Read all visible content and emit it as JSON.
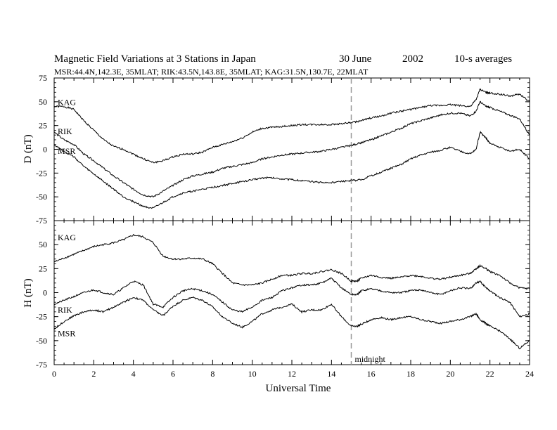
{
  "header": {
    "title": "Magnetic Field Variations at 3 Stations in Japan",
    "date": "30 June",
    "year": "2002",
    "averaging": "10-s averages",
    "stations_line": "MSR:44.4N,142.3E, 35MLAT;   RIK:43.5N,143.8E, 35MLAT;   KAG:31.5N,130.7E, 22MLAT"
  },
  "chart_data": [
    {
      "type": "line",
      "ylabel": "D (nT)",
      "ylim": [
        -75,
        75
      ],
      "yticks": [
        75,
        50,
        25,
        0,
        -25,
        -50,
        -75
      ],
      "xlim": [
        0,
        24
      ],
      "series": [
        {
          "name": "KAG",
          "x": [
            0,
            0.5,
            1,
            1.5,
            2,
            2.5,
            3,
            3.5,
            4,
            4.5,
            5,
            5.5,
            6,
            6.5,
            7,
            7.5,
            8,
            8.5,
            9,
            9.5,
            10,
            10.5,
            11,
            11.5,
            12,
            12.5,
            13,
            13.5,
            14,
            14.5,
            15,
            15.5,
            16,
            16.5,
            17,
            17.5,
            18,
            18.5,
            19,
            19.5,
            20,
            20.5,
            21,
            21.3,
            21.5,
            21.8,
            22,
            22.5,
            23,
            23.5,
            24
          ],
          "y": [
            45,
            45,
            42,
            30,
            20,
            10,
            3,
            0,
            -5,
            -10,
            -14,
            -12,
            -8,
            -5,
            -5,
            -3,
            2,
            5,
            8,
            12,
            18,
            22,
            23,
            24,
            25,
            26,
            26,
            26,
            26,
            27,
            28,
            30,
            33,
            35,
            38,
            40,
            42,
            44,
            46,
            46,
            47,
            46,
            45,
            52,
            63,
            60,
            59,
            58,
            56,
            58,
            50
          ]
        },
        {
          "name": "RIK",
          "x": [
            0,
            0.5,
            1,
            1.5,
            2,
            2.5,
            3,
            3.5,
            4,
            4.5,
            5,
            5.5,
            6,
            6.5,
            7,
            7.5,
            8,
            8.5,
            9,
            9.5,
            10,
            10.5,
            11,
            11.5,
            12,
            12.5,
            13,
            13.5,
            14,
            14.5,
            15,
            15.5,
            16,
            16.5,
            17,
            17.5,
            18,
            18.5,
            19,
            19.5,
            20,
            20.5,
            21,
            21.3,
            21.5,
            21.8,
            22,
            22.5,
            23,
            23.5,
            24
          ],
          "y": [
            18,
            10,
            5,
            -5,
            -12,
            -20,
            -28,
            -35,
            -42,
            -48,
            -50,
            -44,
            -38,
            -32,
            -28,
            -26,
            -24,
            -20,
            -18,
            -16,
            -14,
            -10,
            -8,
            -6,
            -5,
            -4,
            -3,
            -2,
            0,
            2,
            4,
            7,
            10,
            14,
            18,
            22,
            27,
            30,
            33,
            36,
            38,
            38,
            35,
            40,
            50,
            45,
            44,
            40,
            36,
            32,
            15
          ]
        },
        {
          "name": "MSR",
          "x": [
            0,
            0.5,
            1,
            1.5,
            2,
            2.5,
            3,
            3.5,
            4,
            4.5,
            5,
            5.5,
            6,
            6.5,
            7,
            7.5,
            8,
            8.5,
            9,
            9.5,
            10,
            10.5,
            11,
            11.5,
            12,
            12.5,
            13,
            13.5,
            14,
            14.5,
            15,
            15.5,
            16,
            16.5,
            17,
            17.5,
            18,
            18.5,
            19,
            19.5,
            20,
            20.5,
            21,
            21.3,
            21.5,
            21.8,
            22,
            22.5,
            23,
            23.5,
            24
          ],
          "y": [
            5,
            -2,
            -8,
            -18,
            -26,
            -34,
            -42,
            -50,
            -55,
            -60,
            -62,
            -56,
            -50,
            -46,
            -44,
            -42,
            -40,
            -38,
            -36,
            -34,
            -32,
            -30,
            -30,
            -31,
            -32,
            -33,
            -34,
            -35,
            -35,
            -34,
            -33,
            -32,
            -28,
            -24,
            -20,
            -16,
            -10,
            -6,
            -3,
            -1,
            2,
            -2,
            -5,
            0,
            18,
            12,
            6,
            2,
            -2,
            0,
            -10
          ]
        }
      ]
    },
    {
      "type": "line",
      "ylabel": "H (nT)",
      "ylim": [
        -75,
        75
      ],
      "yticks": [
        50,
        25,
        0,
        -25,
        -50,
        -75
      ],
      "xlim": [
        0,
        24
      ],
      "xticks": [
        0,
        2,
        4,
        6,
        8,
        10,
        12,
        14,
        16,
        18,
        20,
        22,
        24
      ],
      "xticklabels": [
        "0",
        "2",
        "4",
        "6",
        "8",
        "10",
        "12",
        "14",
        "16",
        "18",
        "20",
        "22",
        "24"
      ],
      "xlabel": "Universal Time",
      "annotations": [
        {
          "x": 15,
          "label": "midnight"
        }
      ],
      "series": [
        {
          "name": "KAG",
          "x": [
            0,
            0.5,
            1,
            1.5,
            2,
            2.5,
            3,
            3.5,
            4,
            4.5,
            5,
            5.5,
            6,
            6.5,
            7,
            7.5,
            8,
            8.5,
            9,
            9.5,
            10,
            10.5,
            11,
            11.5,
            12,
            12.5,
            13,
            13.5,
            14,
            14.5,
            15,
            15.3,
            15.5,
            16,
            16.5,
            17,
            17.5,
            18,
            18.5,
            19,
            19.5,
            20,
            20.5,
            21,
            21.3,
            21.5,
            21.8,
            22,
            22.5,
            23,
            23.5,
            24
          ],
          "y": [
            32,
            36,
            40,
            44,
            48,
            50,
            52,
            55,
            60,
            58,
            52,
            38,
            35,
            35,
            36,
            35,
            30,
            20,
            10,
            8,
            8,
            10,
            14,
            18,
            18,
            20,
            20,
            22,
            24,
            20,
            12,
            12,
            15,
            18,
            16,
            15,
            16,
            18,
            17,
            15,
            14,
            16,
            18,
            20,
            25,
            28,
            25,
            22,
            18,
            10,
            5,
            4
          ]
        },
        {
          "name": "RIK",
          "x": [
            0,
            0.5,
            1,
            1.5,
            2,
            2.5,
            3,
            3.5,
            4,
            4.5,
            5,
            5.5,
            6,
            6.5,
            7,
            7.5,
            8,
            8.5,
            9,
            9.5,
            10,
            10.5,
            11,
            11.5,
            12,
            12.5,
            13,
            13.5,
            14,
            14.5,
            15,
            15.3,
            15.5,
            16,
            16.5,
            17,
            17.5,
            18,
            18.5,
            19,
            19.5,
            20,
            20.5,
            21,
            21.3,
            21.5,
            21.8,
            22,
            22.5,
            23,
            23.5,
            24
          ],
          "y": [
            -12,
            -8,
            -4,
            0,
            3,
            0,
            -2,
            5,
            12,
            8,
            -12,
            -15,
            -5,
            2,
            4,
            2,
            -2,
            -10,
            -18,
            -20,
            -15,
            -8,
            -5,
            2,
            5,
            8,
            8,
            10,
            15,
            5,
            -2,
            -2,
            2,
            4,
            2,
            0,
            0,
            2,
            3,
            0,
            -2,
            2,
            5,
            4,
            10,
            12,
            5,
            2,
            -5,
            -10,
            -25,
            -22
          ]
        },
        {
          "name": "MSR",
          "x": [
            0,
            0.5,
            1,
            1.5,
            2,
            2.5,
            3,
            3.5,
            4,
            4.5,
            5,
            5.5,
            6,
            6.5,
            7,
            7.5,
            8,
            8.5,
            9,
            9.5,
            10,
            10.5,
            11,
            11.5,
            12,
            12.5,
            13,
            13.5,
            14,
            14.5,
            15,
            15.3,
            15.5,
            16,
            16.5,
            17,
            17.5,
            18,
            18.5,
            19,
            19.5,
            20,
            20.5,
            21,
            21.3,
            21.5,
            21.8,
            22,
            22.5,
            23,
            23.5,
            24
          ],
          "y": [
            -38,
            -30,
            -24,
            -20,
            -18,
            -20,
            -15,
            -10,
            -5,
            -8,
            -18,
            -24,
            -14,
            -8,
            -5,
            -8,
            -15,
            -25,
            -32,
            -36,
            -30,
            -22,
            -18,
            -15,
            -12,
            -20,
            -18,
            -18,
            -12,
            -25,
            -35,
            -35,
            -33,
            -28,
            -26,
            -28,
            -26,
            -25,
            -28,
            -30,
            -32,
            -30,
            -28,
            -25,
            -22,
            -28,
            -32,
            -35,
            -40,
            -48,
            -58,
            -50
          ]
        }
      ]
    }
  ]
}
